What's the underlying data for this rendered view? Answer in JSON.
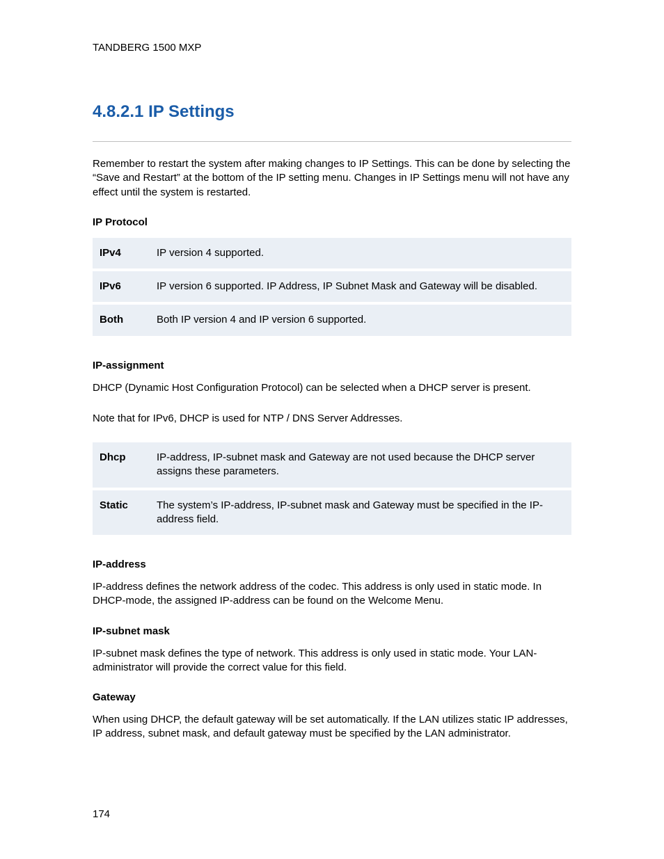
{
  "header": {
    "product": "TANDBERG 1500 MXP"
  },
  "section": {
    "number_title": "4.8.2.1 IP Settings",
    "heading_color": "#1a5ca8"
  },
  "intro": {
    "text": "Remember to restart the system after making changes to IP Settings. This can be done by selecting the “Save and Restart” at the bottom of the IP setting menu. Changes in IP Settings menu will not have any effect until the system is restarted."
  },
  "ip_protocol": {
    "heading": "IP Protocol",
    "rows": [
      {
        "key": "IPv4",
        "desc": "IP version 4 supported."
      },
      {
        "key": "IPv6",
        "desc": "IP version 6 supported.  IP Address, IP Subnet Mask and Gateway will be disabled."
      },
      {
        "key": "Both",
        "desc": "Both IP version 4 and IP version 6 supported."
      }
    ]
  },
  "ip_assignment": {
    "heading": "IP-assignment",
    "para1": "DHCP (Dynamic Host Configuration Protocol) can be selected when a DHCP server is present.",
    "para2": "Note that for IPv6, DHCP is used for NTP / DNS Server Addresses.",
    "rows": [
      {
        "key": "Dhcp",
        "desc": "IP-address, IP-subnet mask and Gateway are not used because the DHCP server assigns these parameters."
      },
      {
        "key": "Static",
        "desc": "The system’s IP-address, IP-subnet mask and Gateway must be specified in the IP-address field."
      }
    ]
  },
  "ip_address": {
    "heading": "IP-address",
    "text": "IP-address defines the network address of the codec. This address is only used in static mode. In DHCP-mode, the assigned IP-address can be found on the Welcome Menu."
  },
  "ip_subnet": {
    "heading": "IP-subnet mask",
    "text": "IP-subnet mask defines the type of network. This address is only used in static mode. Your LAN-administrator will provide the correct value for this field."
  },
  "gateway": {
    "heading": "Gateway",
    "text": "When using DHCP, the default gateway will be set automatically. If the LAN utilizes static IP addresses, IP address, subnet mask, and default gateway must be specified by the LAN administrator."
  },
  "footer": {
    "page_number": "174"
  },
  "style": {
    "table_bg": "#eaeff5",
    "rule_color": "#bfbfbf",
    "body_font_size": 15,
    "heading_font_size": 24
  }
}
